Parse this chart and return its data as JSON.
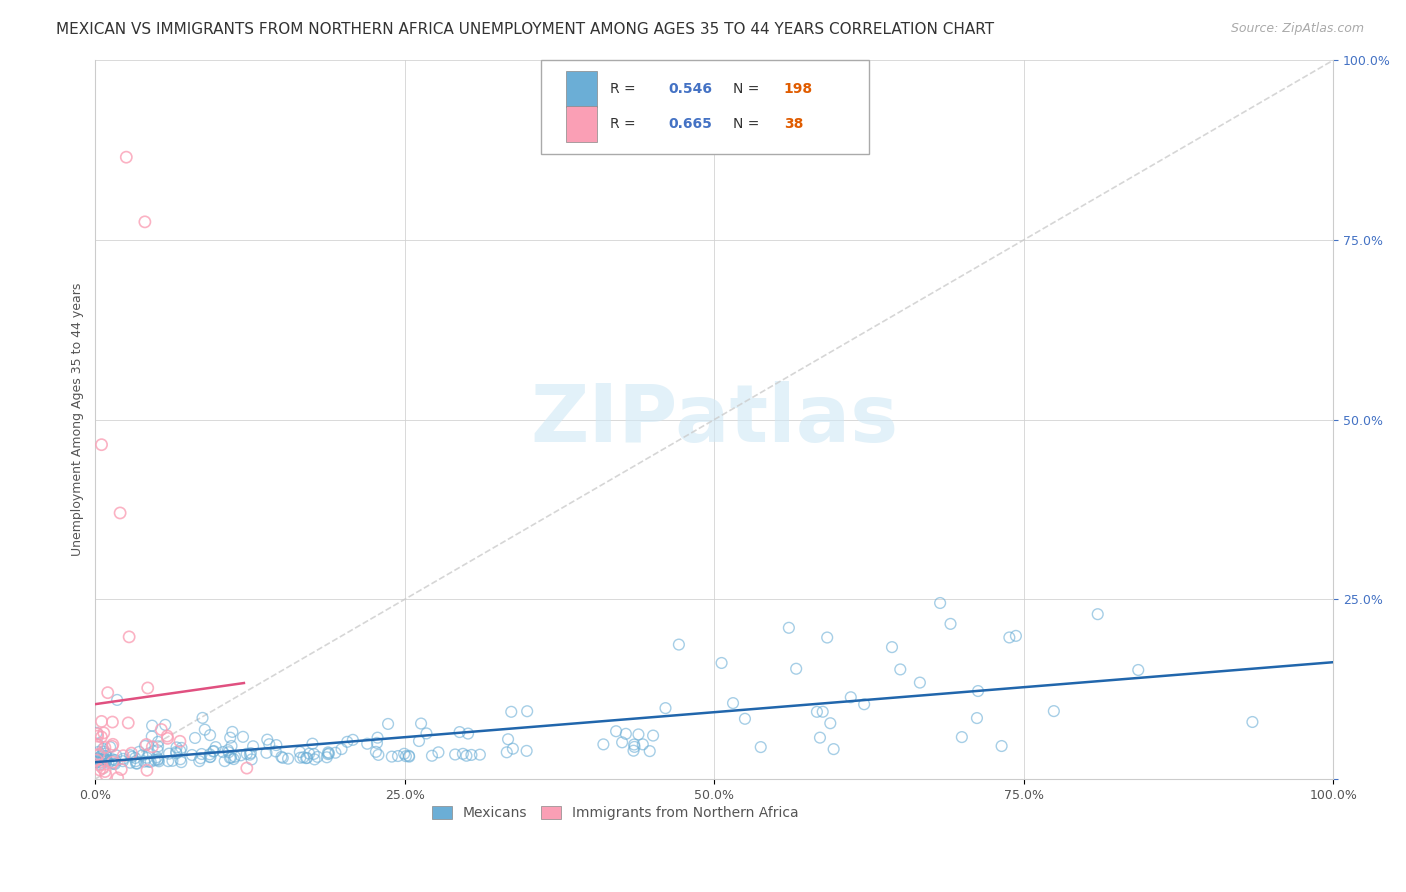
{
  "title": "MEXICAN VS IMMIGRANTS FROM NORTHERN AFRICA UNEMPLOYMENT AMONG AGES 35 TO 44 YEARS CORRELATION CHART",
  "source": "Source: ZipAtlas.com",
  "ylabel": "Unemployment Among Ages 35 to 44 years",
  "xlabel": "",
  "xlim": [
    0,
    1.0
  ],
  "ylim": [
    0,
    1.0
  ],
  "xticks": [
    0.0,
    0.25,
    0.5,
    0.75,
    1.0
  ],
  "yticks": [
    0.0,
    0.25,
    0.5,
    0.75,
    1.0
  ],
  "xticklabels": [
    "0.0%",
    "25.0%",
    "50.0%",
    "75.0%",
    "100.0%"
  ],
  "yticklabels": [
    "",
    "25.0%",
    "50.0%",
    "75.0%",
    "100.0%"
  ],
  "mexican_color": "#6baed6",
  "mexican_edge_color": "#4292c6",
  "northafrica_color": "#fa9fb5",
  "northafrica_edge_color": "#f768a1",
  "mexican_line_color": "#2166ac",
  "northafrica_line_color": "#e05080",
  "diagonal_color": "#cccccc",
  "mexican_R": 0.546,
  "mexican_N": 198,
  "northafrica_R": 0.665,
  "northafrica_N": 38,
  "background_color": "#ffffff",
  "grid_color": "#d0d0d0",
  "watermark_color": "#d0e8f5",
  "legend_labels": [
    "Mexicans",
    "Immigrants from Northern Africa"
  ],
  "title_fontsize": 11,
  "source_fontsize": 9,
  "axis_label_fontsize": 9,
  "tick_fontsize": 9,
  "legend_fontsize": 10,
  "r_value_color": "#4472c4",
  "n_value_color": "#e05c00"
}
